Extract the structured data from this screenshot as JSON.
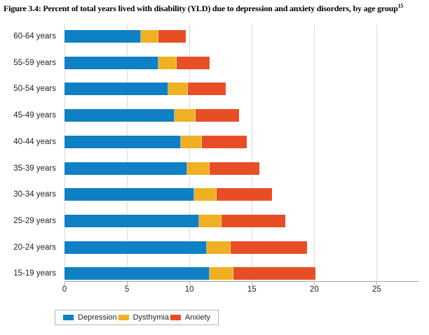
{
  "title": {
    "text": "Figure 3.4: Percent of total years lived with disability (YLD) due to depression and anxiety disorders, by age group",
    "superscript": "15"
  },
  "chart_data": {
    "type": "bar",
    "orientation": "horizontal",
    "stacked": true,
    "title": "Percent of total years lived with disability (YLD) due to depression and anxiety disorders, by age group",
    "categories": [
      "60-64 years",
      "55-59 years",
      "50-54 years",
      "45-49 years",
      "40-44 years",
      "35-39 years",
      "30-34 years",
      "25-29 years",
      "20-24 years",
      "15-19 years"
    ],
    "series": [
      {
        "name": "Depression",
        "color": "#0e80c3",
        "values": [
          6.1,
          7.5,
          8.3,
          8.8,
          9.3,
          9.8,
          10.4,
          10.8,
          11.4,
          11.6
        ]
      },
      {
        "name": "Dysthymia",
        "color": "#f0b021",
        "values": [
          1.4,
          1.5,
          1.6,
          1.7,
          1.7,
          1.8,
          1.8,
          1.8,
          1.9,
          1.9
        ]
      },
      {
        "name": "Anxiety",
        "color": "#e84e26",
        "values": [
          2.2,
          2.6,
          3.0,
          3.5,
          3.6,
          4.0,
          4.4,
          5.1,
          6.1,
          6.6
        ]
      }
    ],
    "x_ticks": [
      "0",
      "5",
      "10",
      "15",
      "20",
      "25"
    ],
    "xlim": [
      0,
      28.4
    ],
    "xlabel": "",
    "ylabel": "",
    "grid": true,
    "legend_position": "bottom",
    "gridline_color": "#d9d9d9",
    "axis_color": "#a6a6a6",
    "text_color": "#231f20"
  }
}
